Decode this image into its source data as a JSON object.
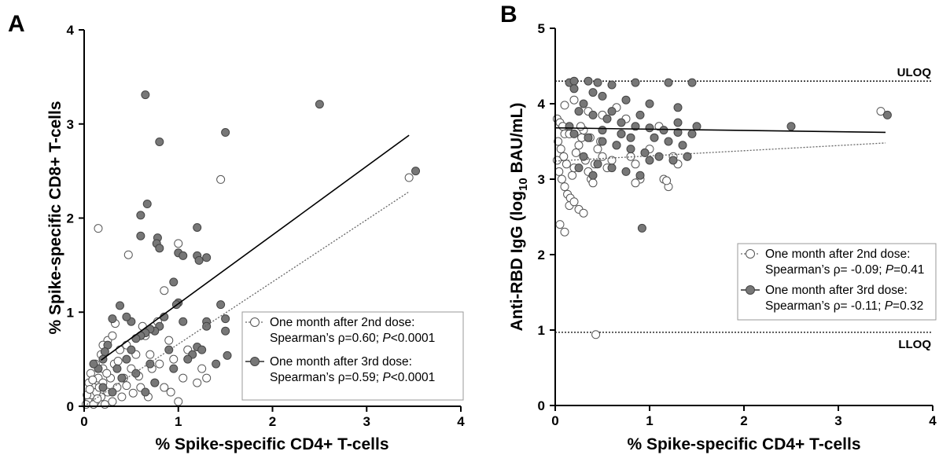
{
  "chart_data": [
    {
      "panel": "A",
      "type": "scatter",
      "xlabel": "% Spike-specific CD4+ T-cells",
      "ylabel": "% Spike-specific CD8+ T-cells",
      "xlim": [
        0,
        4
      ],
      "ylim": [
        0,
        4
      ],
      "xticks": [
        "0",
        "1",
        "2",
        "3",
        "4"
      ],
      "yticks": [
        "0",
        "1",
        "2",
        "3",
        "4"
      ],
      "legend": [
        {
          "line1": "One month after 2nd dose:",
          "line2": "Spearman’s ρ=0.60; ",
          "p_italic": "P",
          "p_rest": "<0.0001",
          "marker": "open"
        },
        {
          "line1": "One month after 3rd dose:",
          "line2": "Spearman’s ρ=0.59; ",
          "p_italic": "P",
          "p_rest": "<0.0001",
          "marker": "filled"
        }
      ],
      "series": [
        {
          "name": "One month after 2nd dose",
          "marker": "open",
          "regression": {
            "x": [
              0,
              3.45
            ],
            "y": [
              0,
              2.28
            ]
          },
          "points": [
            [
              0.15,
              1.89
            ],
            [
              0.47,
              1.61
            ],
            [
              1.0,
              1.73
            ],
            [
              0.85,
              1.23
            ],
            [
              1.45,
              2.41
            ],
            [
              3.45,
              2.43
            ],
            [
              0.05,
              0.05
            ],
            [
              0.02,
              0.02
            ],
            [
              0.08,
              0.12
            ],
            [
              0.1,
              0.2
            ],
            [
              0.12,
              0.05
            ],
            [
              0.15,
              0.3
            ],
            [
              0.18,
              0.1
            ],
            [
              0.2,
              0.25
            ],
            [
              0.05,
              0.25
            ],
            [
              0.07,
              0.35
            ],
            [
              0.1,
              0.02
            ],
            [
              0.13,
              0.15
            ],
            [
              0.16,
              0.2
            ],
            [
              0.2,
              0.4
            ],
            [
              0.22,
              0.02
            ],
            [
              0.25,
              0.15
            ],
            [
              0.28,
              0.3
            ],
            [
              0.3,
              0.05
            ],
            [
              0.32,
              0.45
            ],
            [
              0.35,
              0.2
            ],
            [
              0.38,
              0.6
            ],
            [
              0.4,
              0.1
            ],
            [
              0.42,
              0.3
            ],
            [
              0.45,
              0.65
            ],
            [
              0.5,
              0.4
            ],
            [
              0.55,
              0.55
            ],
            [
              0.6,
              0.2
            ],
            [
              0.62,
              0.85
            ],
            [
              0.65,
              0.75
            ],
            [
              0.68,
              0.1
            ],
            [
              0.72,
              0.4
            ],
            [
              0.75,
              0.25
            ],
            [
              0.78,
              0.9
            ],
            [
              0.8,
              0.45
            ],
            [
              0.9,
              0.7
            ],
            [
              0.95,
              0.5
            ],
            [
              1.0,
              0.05
            ],
            [
              1.05,
              0.3
            ],
            [
              1.1,
              0.6
            ],
            [
              1.2,
              0.25
            ],
            [
              1.25,
              0.4
            ],
            [
              1.3,
              0.3
            ],
            [
              0.18,
              0.55
            ],
            [
              0.25,
              0.7
            ],
            [
              0.3,
              0.75
            ],
            [
              0.33,
              0.88
            ],
            [
              0.2,
              0.65
            ],
            [
              0.12,
              0.45
            ],
            [
              0.09,
              0.28
            ],
            [
              0.03,
              0.12
            ],
            [
              0.06,
              0.18
            ],
            [
              0.14,
              0.08
            ],
            [
              0.24,
              0.35
            ],
            [
              0.36,
              0.48
            ],
            [
              0.45,
              0.22
            ],
            [
              0.52,
              0.14
            ],
            [
              0.58,
              0.32
            ],
            [
              0.7,
              0.55
            ],
            [
              0.85,
              0.2
            ],
            [
              0.92,
              0.15
            ]
          ]
        },
        {
          "name": "One month after 3rd dose",
          "marker": "filled",
          "regression": {
            "x": [
              0.18,
              3.45
            ],
            "y": [
              0.49,
              2.88
            ]
          },
          "points": [
            [
              0.65,
              3.31
            ],
            [
              0.8,
              2.81
            ],
            [
              0.67,
              2.15
            ],
            [
              0.6,
              2.03
            ],
            [
              0.6,
              1.81
            ],
            [
              0.78,
              1.79
            ],
            [
              0.77,
              1.73
            ],
            [
              0.8,
              1.68
            ],
            [
              1.0,
              1.63
            ],
            [
              1.05,
              1.6
            ],
            [
              1.2,
              1.6
            ],
            [
              1.22,
              1.55
            ],
            [
              1.3,
              1.58
            ],
            [
              1.2,
              1.9
            ],
            [
              1.5,
              2.91
            ],
            [
              2.5,
              3.21
            ],
            [
              3.52,
              2.5
            ],
            [
              1.45,
              1.08
            ],
            [
              1.5,
              0.93
            ],
            [
              1.5,
              0.8
            ],
            [
              1.52,
              0.54
            ],
            [
              1.4,
              0.45
            ],
            [
              1.3,
              0.9
            ],
            [
              1.3,
              0.85
            ],
            [
              1.2,
              0.63
            ],
            [
              1.15,
              0.55
            ],
            [
              1.05,
              0.9
            ],
            [
              1.0,
              1.1
            ],
            [
              0.98,
              1.08
            ],
            [
              0.95,
              1.32
            ],
            [
              0.85,
              0.95
            ],
            [
              0.8,
              0.85
            ],
            [
              0.75,
              0.8
            ],
            [
              0.7,
              0.82
            ],
            [
              0.65,
              0.78
            ],
            [
              0.6,
              0.75
            ],
            [
              0.55,
              0.72
            ],
            [
              0.5,
              0.9
            ],
            [
              0.45,
              0.95
            ],
            [
              0.38,
              1.07
            ],
            [
              0.3,
              0.93
            ],
            [
              0.25,
              0.65
            ],
            [
              0.22,
              0.58
            ],
            [
              0.2,
              0.5
            ],
            [
              0.15,
              0.4
            ],
            [
              0.1,
              0.45
            ],
            [
              0.35,
              0.4
            ],
            [
              0.4,
              0.3
            ],
            [
              0.45,
              0.5
            ],
            [
              0.5,
              0.6
            ],
            [
              0.55,
              0.35
            ],
            [
              0.7,
              0.45
            ],
            [
              0.75,
              0.25
            ],
            [
              0.9,
              0.6
            ],
            [
              0.95,
              0.4
            ],
            [
              1.1,
              0.5
            ],
            [
              1.25,
              0.6
            ],
            [
              0.3,
              0.15
            ],
            [
              0.2,
              0.2
            ],
            [
              0.65,
              0.15
            ]
          ]
        }
      ]
    },
    {
      "panel": "B",
      "type": "scatter",
      "xlabel": "% Spike-specific CD4+ T-cells",
      "ylabel_main": "Anti-RBD IgG (log",
      "ylabel_sub": "10",
      "ylabel_tail": " BAU/mL)",
      "xlim": [
        0,
        4
      ],
      "ylim": [
        0,
        5
      ],
      "xticks": [
        "0",
        "1",
        "2",
        "3",
        "4"
      ],
      "yticks": [
        "0",
        "1",
        "2",
        "3",
        "4",
        "5"
      ],
      "reference_lines": [
        {
          "label": "ULOQ",
          "y": 4.3
        },
        {
          "label": "LLOQ",
          "y": 0.97
        }
      ],
      "legend": [
        {
          "line1": "One month after 2nd dose:",
          "line2": "Spearman’s ρ= -0.09; ",
          "p_italic": "P",
          "p_rest": "=0.41",
          "marker": "open"
        },
        {
          "line1": "One month after 3rd dose:",
          "line2": "Spearman’s ρ= -0.11; ",
          "p_italic": "P",
          "p_rest": "=0.32",
          "marker": "filled"
        }
      ],
      "series": [
        {
          "name": "One month after 2nd dose",
          "marker": "open",
          "regression": {
            "x": [
              0,
              3.5
            ],
            "y": [
              3.24,
              3.48
            ]
          },
          "points": [
            [
              0.02,
              3.8
            ],
            [
              0.05,
              3.75
            ],
            [
              0.08,
              3.7
            ],
            [
              0.1,
              3.6
            ],
            [
              0.03,
              3.5
            ],
            [
              0.06,
              3.4
            ],
            [
              0.09,
              3.3
            ],
            [
              0.12,
              3.2
            ],
            [
              0.04,
              3.1
            ],
            [
              0.07,
              3.0
            ],
            [
              0.1,
              2.9
            ],
            [
              0.13,
              2.8
            ],
            [
              0.16,
              2.75
            ],
            [
              0.18,
              3.05
            ],
            [
              0.2,
              3.15
            ],
            [
              0.22,
              3.35
            ],
            [
              0.25,
              3.45
            ],
            [
              0.28,
              3.55
            ],
            [
              0.3,
              3.65
            ],
            [
              0.32,
              3.25
            ],
            [
              0.35,
              3.1
            ],
            [
              0.38,
              3.0
            ],
            [
              0.4,
              2.95
            ],
            [
              0.42,
              3.2
            ],
            [
              0.45,
              3.4
            ],
            [
              0.48,
              3.5
            ],
            [
              0.5,
              3.3
            ],
            [
              0.55,
              3.15
            ],
            [
              0.6,
              3.25
            ],
            [
              0.65,
              3.45
            ],
            [
              0.7,
              3.6
            ],
            [
              0.75,
              3.8
            ],
            [
              0.8,
              3.3
            ],
            [
              0.85,
              3.2
            ],
            [
              0.9,
              3.0
            ],
            [
              0.95,
              3.35
            ],
            [
              1.0,
              3.4
            ],
            [
              1.1,
              3.7
            ],
            [
              1.15,
              3.0
            ],
            [
              1.2,
              2.9
            ],
            [
              1.25,
              3.3
            ],
            [
              1.3,
              3.2
            ],
            [
              1.4,
              3.3
            ],
            [
              0.05,
              2.4
            ],
            [
              0.1,
              2.3
            ],
            [
              0.15,
              2.65
            ],
            [
              0.2,
              2.7
            ],
            [
              0.25,
              2.6
            ],
            [
              0.3,
              2.55
            ],
            [
              0.43,
              0.94
            ],
            [
              3.45,
              3.9
            ],
            [
              0.1,
              3.98
            ],
            [
              0.2,
              4.05
            ],
            [
              0.35,
              3.9
            ],
            [
              0.5,
              3.85
            ],
            [
              0.65,
              3.95
            ],
            [
              0.02,
              3.25
            ],
            [
              0.15,
              3.6
            ],
            [
              0.27,
              3.7
            ],
            [
              0.37,
              3.55
            ],
            [
              0.85,
              2.95
            ],
            [
              1.18,
              2.98
            ]
          ]
        },
        {
          "name": "One month after 3rd dose",
          "marker": "filled",
          "regression": {
            "x": [
              0,
              3.5
            ],
            "y": [
              3.68,
              3.62
            ]
          },
          "points": [
            [
              0.15,
              4.28
            ],
            [
              0.2,
              4.3
            ],
            [
              0.35,
              4.3
            ],
            [
              0.45,
              4.28
            ],
            [
              0.6,
              4.25
            ],
            [
              0.85,
              4.28
            ],
            [
              1.2,
              4.28
            ],
            [
              1.45,
              4.28
            ],
            [
              0.2,
              4.2
            ],
            [
              0.4,
              4.15
            ],
            [
              0.5,
              4.1
            ],
            [
              0.75,
              4.05
            ],
            [
              1.0,
              4.0
            ],
            [
              1.3,
              3.95
            ],
            [
              0.3,
              4.0
            ],
            [
              0.25,
              3.9
            ],
            [
              0.4,
              3.85
            ],
            [
              0.55,
              3.8
            ],
            [
              0.7,
              3.75
            ],
            [
              0.85,
              3.7
            ],
            [
              1.0,
              3.68
            ],
            [
              1.15,
              3.65
            ],
            [
              1.3,
              3.62
            ],
            [
              1.45,
              3.6
            ],
            [
              0.2,
              3.6
            ],
            [
              0.35,
              3.55
            ],
            [
              0.5,
              3.5
            ],
            [
              0.65,
              3.45
            ],
            [
              0.8,
              3.4
            ],
            [
              0.95,
              3.35
            ],
            [
              1.1,
              3.3
            ],
            [
              1.25,
              3.25
            ],
            [
              1.4,
              3.3
            ],
            [
              0.3,
              3.3
            ],
            [
              0.45,
              3.2
            ],
            [
              0.6,
              3.15
            ],
            [
              0.75,
              3.1
            ],
            [
              0.9,
              3.05
            ],
            [
              0.25,
              3.15
            ],
            [
              0.4,
              3.05
            ],
            [
              0.92,
              2.35
            ],
            [
              2.5,
              3.7
            ],
            [
              3.52,
              3.85
            ],
            [
              0.6,
              3.9
            ],
            [
              0.7,
              3.6
            ],
            [
              0.9,
              3.85
            ],
            [
              1.05,
              3.55
            ],
            [
              1.2,
              3.5
            ],
            [
              1.35,
              3.45
            ],
            [
              1.5,
              3.7
            ],
            [
              0.15,
              3.7
            ],
            [
              0.5,
              3.65
            ],
            [
              0.8,
              3.55
            ],
            [
              1.0,
              3.25
            ],
            [
              1.3,
              3.75
            ]
          ]
        }
      ]
    }
  ]
}
